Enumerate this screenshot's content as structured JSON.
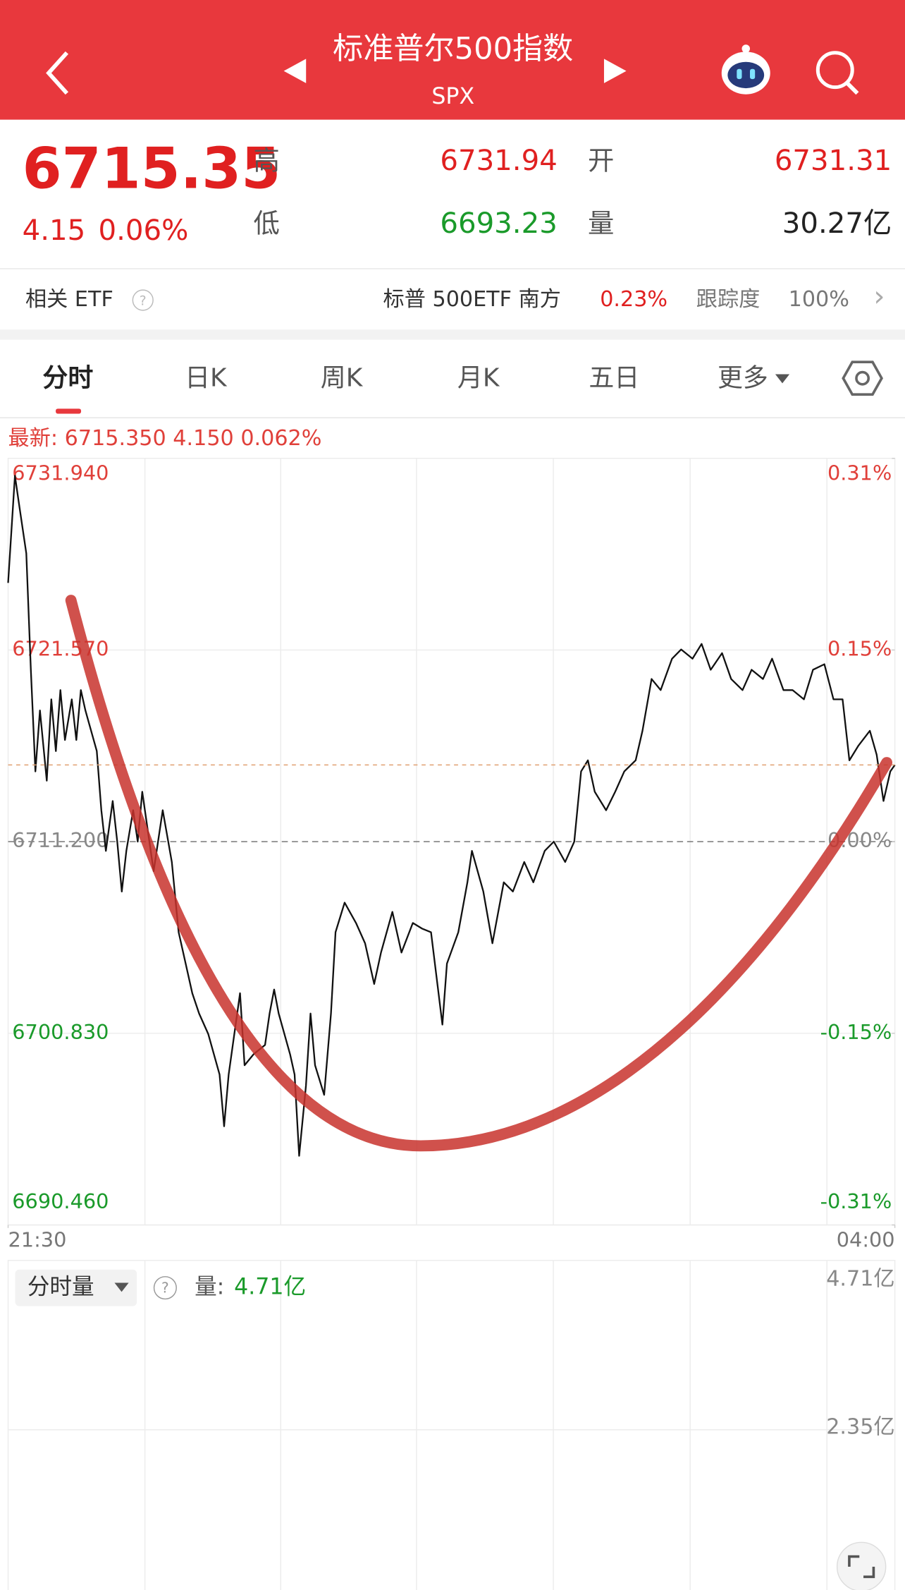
{
  "header": {
    "title": "标准普尔500指数",
    "subtitle": "SPX"
  },
  "quote": {
    "price": "6715.35",
    "change": "4.15",
    "change_pct": "0.06%",
    "high_label": "高",
    "high": "6731.94",
    "open_label": "开",
    "open": "6731.31",
    "low_label": "低",
    "low": "6693.23",
    "volume_label": "量",
    "volume": "30.27亿"
  },
  "etf": {
    "label": "相关 ETF",
    "help": "?",
    "name": "标普 500ETF 南方",
    "change": "0.23%",
    "tracking_label": "跟踪度",
    "tracking": "100%",
    "more": "›"
  },
  "tabs": [
    "分时",
    "日K",
    "周K",
    "月K",
    "五日",
    "更多"
  ],
  "chart_data": {
    "type": "line",
    "annotation": "最新: 6715.350  4.150  0.062%",
    "xlim": [
      0,
      390
    ],
    "xticks": [
      {
        "value": 0,
        "label": "21:30"
      },
      {
        "value": 390,
        "label": "04:00"
      }
    ],
    "ylim": [
      6690.46,
      6731.94
    ],
    "yticks": [
      {
        "value": 6731.94,
        "label": "6731.940"
      },
      {
        "value": 6721.57,
        "label": "6721.570"
      },
      {
        "value": 6711.2,
        "label": "6711.200"
      },
      {
        "value": 6700.83,
        "label": "6700.830"
      },
      {
        "value": 6690.46,
        "label": "6690.460"
      }
    ],
    "y2lim": [
      -0.309,
      0.309
    ],
    "y2ticks": [
      {
        "value": 0.309,
        "label": "0.31%"
      },
      {
        "value": 0.1545,
        "label": "0.15%"
      },
      {
        "value": 0,
        "label": "0.00%"
      },
      {
        "value": -0.1545,
        "label": "-0.15%"
      },
      {
        "value": -0.309,
        "label": "-0.31%"
      }
    ],
    "grid": true,
    "series": [
      {
        "name": "SPX",
        "color": "#111111",
        "x": [
          0,
          3,
          5,
          8,
          10,
          12,
          14,
          17,
          19,
          21,
          23,
          25,
          28,
          30,
          32,
          34,
          39,
          41,
          43,
          46,
          48,
          50,
          52,
          55,
          57,
          59,
          64,
          68,
          72,
          75,
          77,
          79,
          81,
          84,
          88,
          93,
          95,
          97,
          102,
          104,
          108,
          113,
          115,
          117,
          119,
          124,
          126,
          128,
          131,
          133,
          135,
          139,
          142,
          144,
          148,
          153,
          157,
          161,
          164,
          169,
          173,
          178,
          182,
          186,
          191,
          193,
          198,
          202,
          204,
          209,
          213,
          218,
          222,
          227,
          231,
          236,
          240,
          245,
          249,
          252,
          255,
          258,
          263,
          267,
          271,
          276,
          279,
          283,
          287,
          292,
          296,
          301,
          305,
          309,
          314,
          318,
          323,
          327,
          332,
          336,
          341,
          345,
          350,
          354,
          359,
          363,
          367,
          370,
          374,
          379,
          382,
          385,
          388,
          390
        ],
        "values": [
          6725.2,
          6731.0,
          6729.3,
          6726.8,
          6720.5,
          6715.0,
          6718.3,
          6714.5,
          6718.9,
          6716.1,
          6719.4,
          6716.7,
          6718.9,
          6716.7,
          6719.4,
          6718.3,
          6716.1,
          6712.9,
          6710.7,
          6713.4,
          6711.2,
          6708.5,
          6710.7,
          6712.9,
          6711.2,
          6713.9,
          6709.6,
          6712.9,
          6710.1,
          6706.3,
          6705.2,
          6704.1,
          6703.0,
          6701.9,
          6700.8,
          6698.6,
          6695.8,
          6698.6,
          6703.0,
          6699.1,
          6699.7,
          6700.2,
          6701.9,
          6703.2,
          6701.9,
          6699.7,
          6698.6,
          6694.2,
          6698.0,
          6701.9,
          6699.1,
          6697.5,
          6701.9,
          6706.3,
          6707.9,
          6706.8,
          6705.7,
          6703.5,
          6705.2,
          6707.4,
          6705.2,
          6706.8,
          6706.5,
          6706.3,
          6701.3,
          6704.6,
          6706.3,
          6709.0,
          6710.7,
          6708.5,
          6705.7,
          6709.0,
          6708.5,
          6710.1,
          6709.0,
          6710.7,
          6711.2,
          6710.1,
          6711.2,
          6715.0,
          6715.6,
          6713.9,
          6712.9,
          6713.9,
          6715.0,
          6715.6,
          6717.2,
          6720.0,
          6719.4,
          6721.1,
          6721.6,
          6721.1,
          6721.9,
          6720.5,
          6721.4,
          6720.0,
          6719.4,
          6720.5,
          6720.0,
          6721.1,
          6719.4,
          6719.4,
          6718.9,
          6720.5,
          6720.8,
          6718.9,
          6718.9,
          6715.6,
          6716.4,
          6717.2,
          6715.9,
          6713.4,
          6715.0,
          6715.35
        ]
      }
    ]
  },
  "volume_panel": {
    "button": "分时量",
    "help": "?",
    "label": "量:",
    "value": "4.71亿",
    "axis_top": "4.71亿",
    "axis_mid": "2.35亿"
  }
}
